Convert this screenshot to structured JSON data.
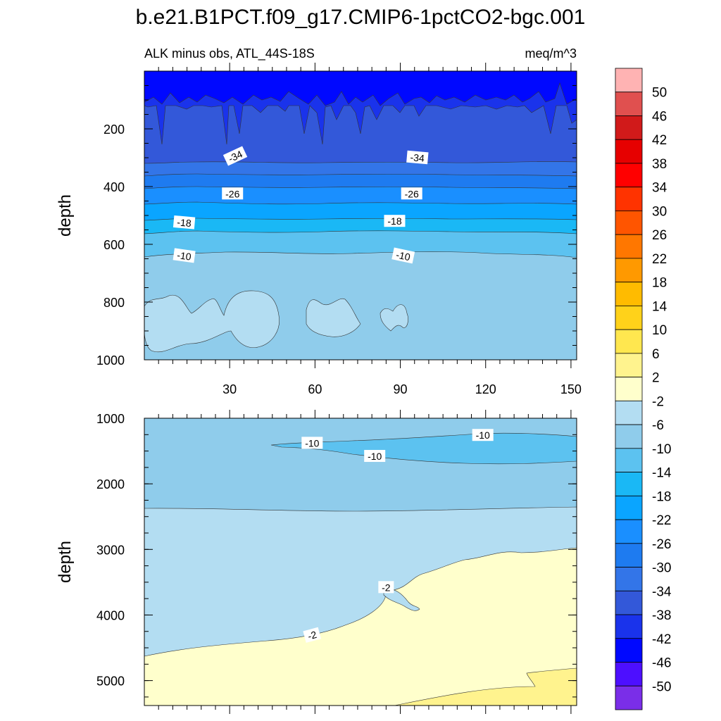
{
  "chart_data": {
    "type": "contour",
    "title": "b.e21.B1PCT.f09_g17.CMIP6-1pctCO2-bgc.001",
    "subtitle_left": "ALK minus obs, ATL_44S-18S",
    "units": "meq/m^3",
    "xlim": [
      0,
      152
    ],
    "x_ticks": [
      30,
      60,
      90,
      120,
      150
    ],
    "panels": [
      {
        "name": "upper",
        "ylabel": "depth",
        "ylim": [
          0,
          1000
        ],
        "y_ticks": [
          200,
          400,
          600,
          800,
          1000
        ],
        "contour_labels": [
          {
            "text": "-34",
            "x": 32,
            "y": 295,
            "rot": -25
          },
          {
            "text": "-34",
            "x": 96,
            "y": 300,
            "rot": 5
          },
          {
            "text": "-26",
            "x": 31,
            "y": 425,
            "rot": 0
          },
          {
            "text": "-26",
            "x": 94,
            "y": 425,
            "rot": 0
          },
          {
            "text": "-18",
            "x": 14,
            "y": 525,
            "rot": 5
          },
          {
            "text": "-18",
            "x": 88,
            "y": 520,
            "rot": 0
          },
          {
            "text": "-10",
            "x": 14,
            "y": 640,
            "rot": 8
          },
          {
            "text": "-10",
            "x": 91,
            "y": 640,
            "rot": 12
          }
        ]
      },
      {
        "name": "lower",
        "ylabel": "depth",
        "ylim": [
          1000,
          5380
        ],
        "y_ticks": [
          1000,
          2000,
          3000,
          4000,
          5000
        ],
        "contour_labels": [
          {
            "text": "-10",
            "x": 59,
            "y": 1380,
            "rot": 0
          },
          {
            "text": "-10",
            "x": 81,
            "y": 1580,
            "rot": 0
          },
          {
            "text": "-10",
            "x": 119,
            "y": 1260,
            "rot": 0
          },
          {
            "text": "-2",
            "x": 85,
            "y": 3580,
            "rot": 0
          },
          {
            "text": "-2",
            "x": 59,
            "y": 4310,
            "rot": -15
          }
        ]
      }
    ],
    "colorbar": {
      "labels": [
        "50",
        "46",
        "42",
        "38",
        "34",
        "30",
        "26",
        "22",
        "18",
        "14",
        "10",
        "6",
        "2",
        "-2",
        "-6",
        "-10",
        "-14",
        "-18",
        "-22",
        "-26",
        "-30",
        "-34",
        "-38",
        "-42",
        "-46",
        "-50"
      ],
      "colors": [
        "#FFB3B3",
        "#E0504F",
        "#D11A1A",
        "#E60000",
        "#FF0000",
        "#FF3300",
        "#FF5500",
        "#FF7700",
        "#FF9900",
        "#FFBB00",
        "#FFD21A",
        "#FFE74F",
        "#FFF38E",
        "#FFFFCC",
        "#B3DDF2",
        "#8FCCEB",
        "#5CC2F0",
        "#1AB8F5",
        "#0AA5FF",
        "#1A8FFF",
        "#1E7BF0",
        "#3375E8",
        "#3358D9",
        "#1A33EB",
        "#0008FF",
        "#4D0FFF",
        "#7A2EE8"
      ]
    }
  }
}
